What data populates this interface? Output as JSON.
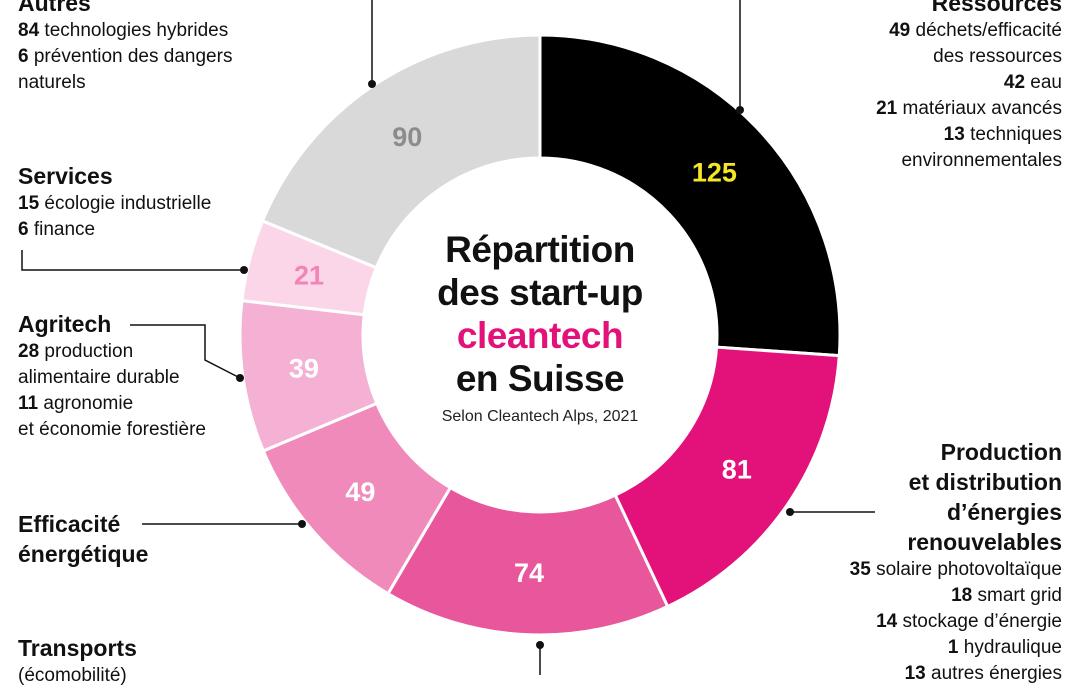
{
  "title": {
    "line1": "Répartition",
    "line2": "des start-up",
    "line3": "cleantech",
    "line4": "en Suisse",
    "source": "Selon Cleantech Alps, 2021"
  },
  "colors": {
    "highlight": "#e2127a"
  },
  "chart_data": {
    "type": "pie",
    "title": "Répartition des start-up cleantech en Suisse",
    "subtitle": "Selon Cleantech Alps, 2021",
    "slices": [
      {
        "name": "Ressources",
        "value": 125,
        "value_label": "125",
        "color": "#000000",
        "label_color": "#f5e625"
      },
      {
        "name": "Production et distribution d’énergies renouvelables",
        "value": 81,
        "value_label": "81",
        "color": "#e2127a",
        "label_color": "#ffffff"
      },
      {
        "name": "Transports",
        "value": 74,
        "value_label": "74",
        "color": "#e8579b",
        "label_color": "#ffffff"
      },
      {
        "name": "Efficacité énergétique",
        "value": 49,
        "value_label": "49",
        "color": "#ef8abb",
        "label_color": "#ffffff"
      },
      {
        "name": "Agritech",
        "value": 39,
        "value_label": "39",
        "color": "#f5b1d3",
        "label_color": "#ffffff"
      },
      {
        "name": "Services",
        "value": 21,
        "value_label": "21",
        "color": "#fad6e8",
        "label_color": "#f086b8"
      },
      {
        "name": "Autres",
        "value": 90,
        "value_label": "90",
        "color": "#d9d9d9",
        "label_color": "#8c8c8c"
      }
    ]
  },
  "annotations": {
    "autres": {
      "heading": "Autres",
      "lines": [
        {
          "num": "84",
          "text": "technologies hybrides"
        },
        {
          "num": "6",
          "text": "prévention des dangers"
        },
        {
          "num": "",
          "text": "naturels"
        }
      ]
    },
    "services": {
      "heading": "Services",
      "lines": [
        {
          "num": "15",
          "text": "écologie industrielle"
        },
        {
          "num": "6",
          "text": "finance"
        }
      ]
    },
    "agritech": {
      "heading": "Agritech",
      "lines": [
        {
          "num": "28",
          "text": "production"
        },
        {
          "num": "",
          "text": "alimentaire durable"
        },
        {
          "num": "11",
          "text": "agronomie"
        },
        {
          "num": "",
          "text": "et économie forestière"
        }
      ]
    },
    "efficacite": {
      "heading1": "Efficacité",
      "heading2": "énergétique"
    },
    "transports": {
      "heading": "Transports",
      "sub": "(écomobilité)"
    },
    "ressources": {
      "heading": "Ressources",
      "lines": [
        {
          "num": "49",
          "text": "déchets/efficacité"
        },
        {
          "num": "",
          "text": "des ressources"
        },
        {
          "num": "42",
          "text": "eau"
        },
        {
          "num": "21",
          "text": "matériaux avancés"
        },
        {
          "num": "13",
          "text": "techniques"
        },
        {
          "num": "",
          "text": "environnementales"
        }
      ]
    },
    "production": {
      "heading1": "Production",
      "heading2": "et distribution",
      "heading3": "d’énergies",
      "heading4": "renouvelables",
      "lines": [
        {
          "num": "35",
          "text": "solaire photovoltaïque"
        },
        {
          "num": "18",
          "text": "smart grid"
        },
        {
          "num": "14",
          "text": "stockage d’énergie"
        },
        {
          "num": "1",
          "text": "hydraulique"
        },
        {
          "num": "13",
          "text": "autres énergies"
        }
      ]
    }
  }
}
